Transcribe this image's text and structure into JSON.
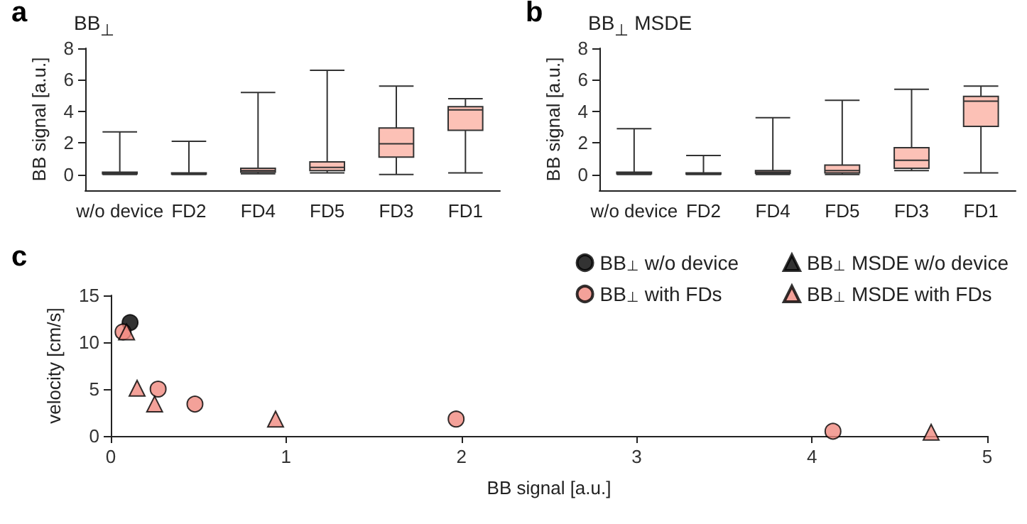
{
  "chart_data": [
    {
      "type": "box",
      "title": "BB$_{⊥}$",
      "annotations": [
        "a"
      ],
      "ylabel": "BB signal [a.u.]",
      "categories": [
        "w/o device",
        "FD2",
        "FD4",
        "FD5",
        "FD3",
        "FD1"
      ],
      "color": "#fcc1b6",
      "boxes": [
        {
          "low": 0,
          "q1": 0.05,
          "median": 0.1,
          "q3": 0.15,
          "high": 2.7
        },
        {
          "low": 0,
          "q1": 0.02,
          "median": 0.05,
          "q3": 0.1,
          "high": 2.1
        },
        {
          "low": 0.05,
          "q1": 0.15,
          "median": 0.25,
          "q3": 0.4,
          "high": 5.2
        },
        {
          "low": 0.1,
          "q1": 0.25,
          "median": 0.45,
          "q3": 0.8,
          "high": 6.6
        },
        {
          "low": 0,
          "q1": 1.1,
          "median": 1.95,
          "q3": 2.95,
          "high": 5.6
        },
        {
          "low": 0.1,
          "q1": 2.8,
          "median": 4.1,
          "q3": 4.3,
          "high": 4.8
        }
      ],
      "ylim": [
        -1,
        8
      ],
      "yticks": [
        0,
        2,
        4,
        6,
        8
      ],
      "grid": false,
      "legend": false
    },
    {
      "type": "box",
      "title": "BB$_{⊥}$ MSDE",
      "annotations": [
        "b"
      ],
      "ylabel": "BB signal [a.u.]",
      "categories": [
        "w/o device",
        "FD2",
        "FD4",
        "FD5",
        "FD3",
        "FD1"
      ],
      "color": "#fcc1b6",
      "boxes": [
        {
          "low": 0,
          "q1": 0.05,
          "median": 0.1,
          "q3": 0.15,
          "high": 2.9
        },
        {
          "low": 0,
          "q1": 0.02,
          "median": 0.05,
          "q3": 0.1,
          "high": 1.2
        },
        {
          "low": 0,
          "q1": 0.08,
          "median": 0.15,
          "q3": 0.25,
          "high": 3.6
        },
        {
          "low": 0,
          "q1": 0.1,
          "median": 0.25,
          "q3": 0.6,
          "high": 4.7
        },
        {
          "low": 0.25,
          "q1": 0.4,
          "median": 0.9,
          "q3": 1.7,
          "high": 5.4
        },
        {
          "low": 0.1,
          "q1": 3.05,
          "median": 4.65,
          "q3": 4.95,
          "high": 5.6
        }
      ],
      "ylim": [
        -1,
        8
      ],
      "yticks": [
        0,
        2,
        4,
        6,
        8
      ],
      "grid": false,
      "legend": false
    },
    {
      "type": "scatter",
      "annotations": [
        "c"
      ],
      "xlabel": "BB signal [a.u.]",
      "ylabel": "velocity [cm/s]",
      "xlim": [
        0,
        5
      ],
      "xticks": [
        0,
        1,
        2,
        3,
        4,
        5
      ],
      "ylim": [
        0,
        15
      ],
      "yticks": [
        0,
        5,
        10,
        15
      ],
      "grid": false,
      "legend": "top right",
      "series": [
        {
          "name": "BB$_{⊥}$ w/o device",
          "color": "#000000",
          "marker": "circle",
          "x": [
            0.11
          ],
          "values": [
            12.1
          ]
        },
        {
          "name": "BB$_{⊥}$ MSDE w/o device",
          "color": "#000000",
          "marker": "triangle"
        },
        {
          "name": "BB$_{⊥}$ with FDs",
          "color": "#f08a80",
          "marker": "circle",
          "x": [
            0.07,
            0.27,
            0.48,
            1.97,
            4.12
          ],
          "values": [
            11.1,
            5.0,
            3.4,
            1.8,
            0.5
          ]
        },
        {
          "name": "BB$_{⊥}$ MSDE with FDs",
          "color": "#f08a80",
          "marker": "triangle",
          "x": [
            0.09,
            0.15,
            0.25,
            0.94,
            4.68
          ],
          "values": [
            11.1,
            5.1,
            3.4,
            1.8,
            0.4
          ]
        }
      ]
    }
  ]
}
